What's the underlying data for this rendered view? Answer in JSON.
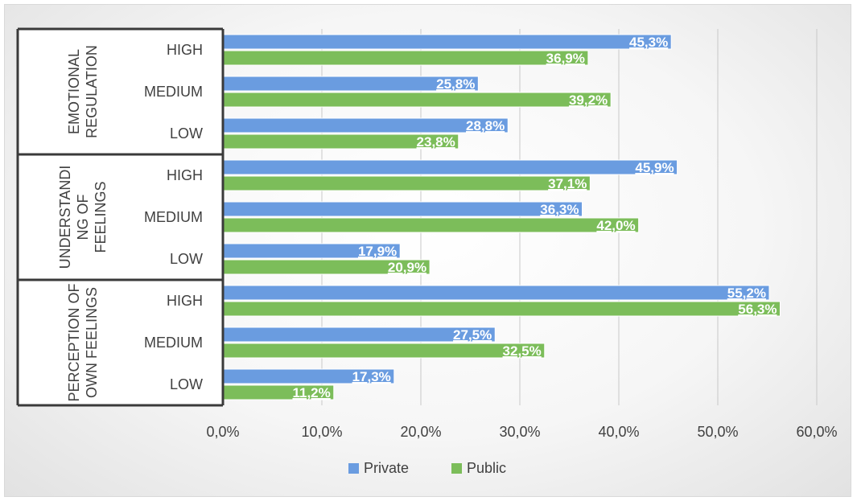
{
  "chart_data": {
    "type": "bar",
    "orientation": "horizontal",
    "x_ticks": [
      "0,0%",
      "10,0%",
      "20,0%",
      "30,0%",
      "40,0%",
      "50,0%",
      "60,0%"
    ],
    "xlim": [
      0,
      60
    ],
    "grid": true,
    "legend_position": "bottom",
    "colors": {
      "Private": "#6a9ce0",
      "Public": "#7cbd5a"
    },
    "groups": [
      {
        "label": [
          "EMOTIONAL",
          "REGULATION"
        ],
        "rows": [
          {
            "category": "HIGH",
            "private": 45.3,
            "public": 36.9,
            "private_label": "45,3%",
            "public_label": "36,9%"
          },
          {
            "category": "MEDIUM",
            "private": 25.8,
            "public": 39.2,
            "private_label": "25,8%",
            "public_label": "39,2%"
          },
          {
            "category": "LOW",
            "private": 28.8,
            "public": 23.8,
            "private_label": "28,8%",
            "public_label": "23,8%"
          }
        ]
      },
      {
        "label": [
          "UNDERSTANDI",
          "NG OF",
          "FEELINGS"
        ],
        "rows": [
          {
            "category": "HIGH",
            "private": 45.9,
            "public": 37.1,
            "private_label": "45,9%",
            "public_label": "37,1%"
          },
          {
            "category": "MEDIUM",
            "private": 36.3,
            "public": 42.0,
            "private_label": "36,3%",
            "public_label": "42,0%"
          },
          {
            "category": "LOW",
            "private": 17.9,
            "public": 20.9,
            "private_label": "17,9%",
            "public_label": "20,9%"
          }
        ]
      },
      {
        "label": [
          "PERCEPTION OF",
          "OWN FEELINGS"
        ],
        "rows": [
          {
            "category": "HIGH",
            "private": 55.2,
            "public": 56.3,
            "private_label": "55,2%",
            "public_label": "56,3%"
          },
          {
            "category": "MEDIUM",
            "private": 27.5,
            "public": 32.5,
            "private_label": "27,5%",
            "public_label": "32,5%"
          },
          {
            "category": "LOW",
            "private": 17.3,
            "public": 11.2,
            "private_label": "17,3%",
            "public_label": "11,2%"
          }
        ]
      }
    ],
    "series": [
      {
        "name": "Private"
      },
      {
        "name": "Public"
      }
    ]
  }
}
